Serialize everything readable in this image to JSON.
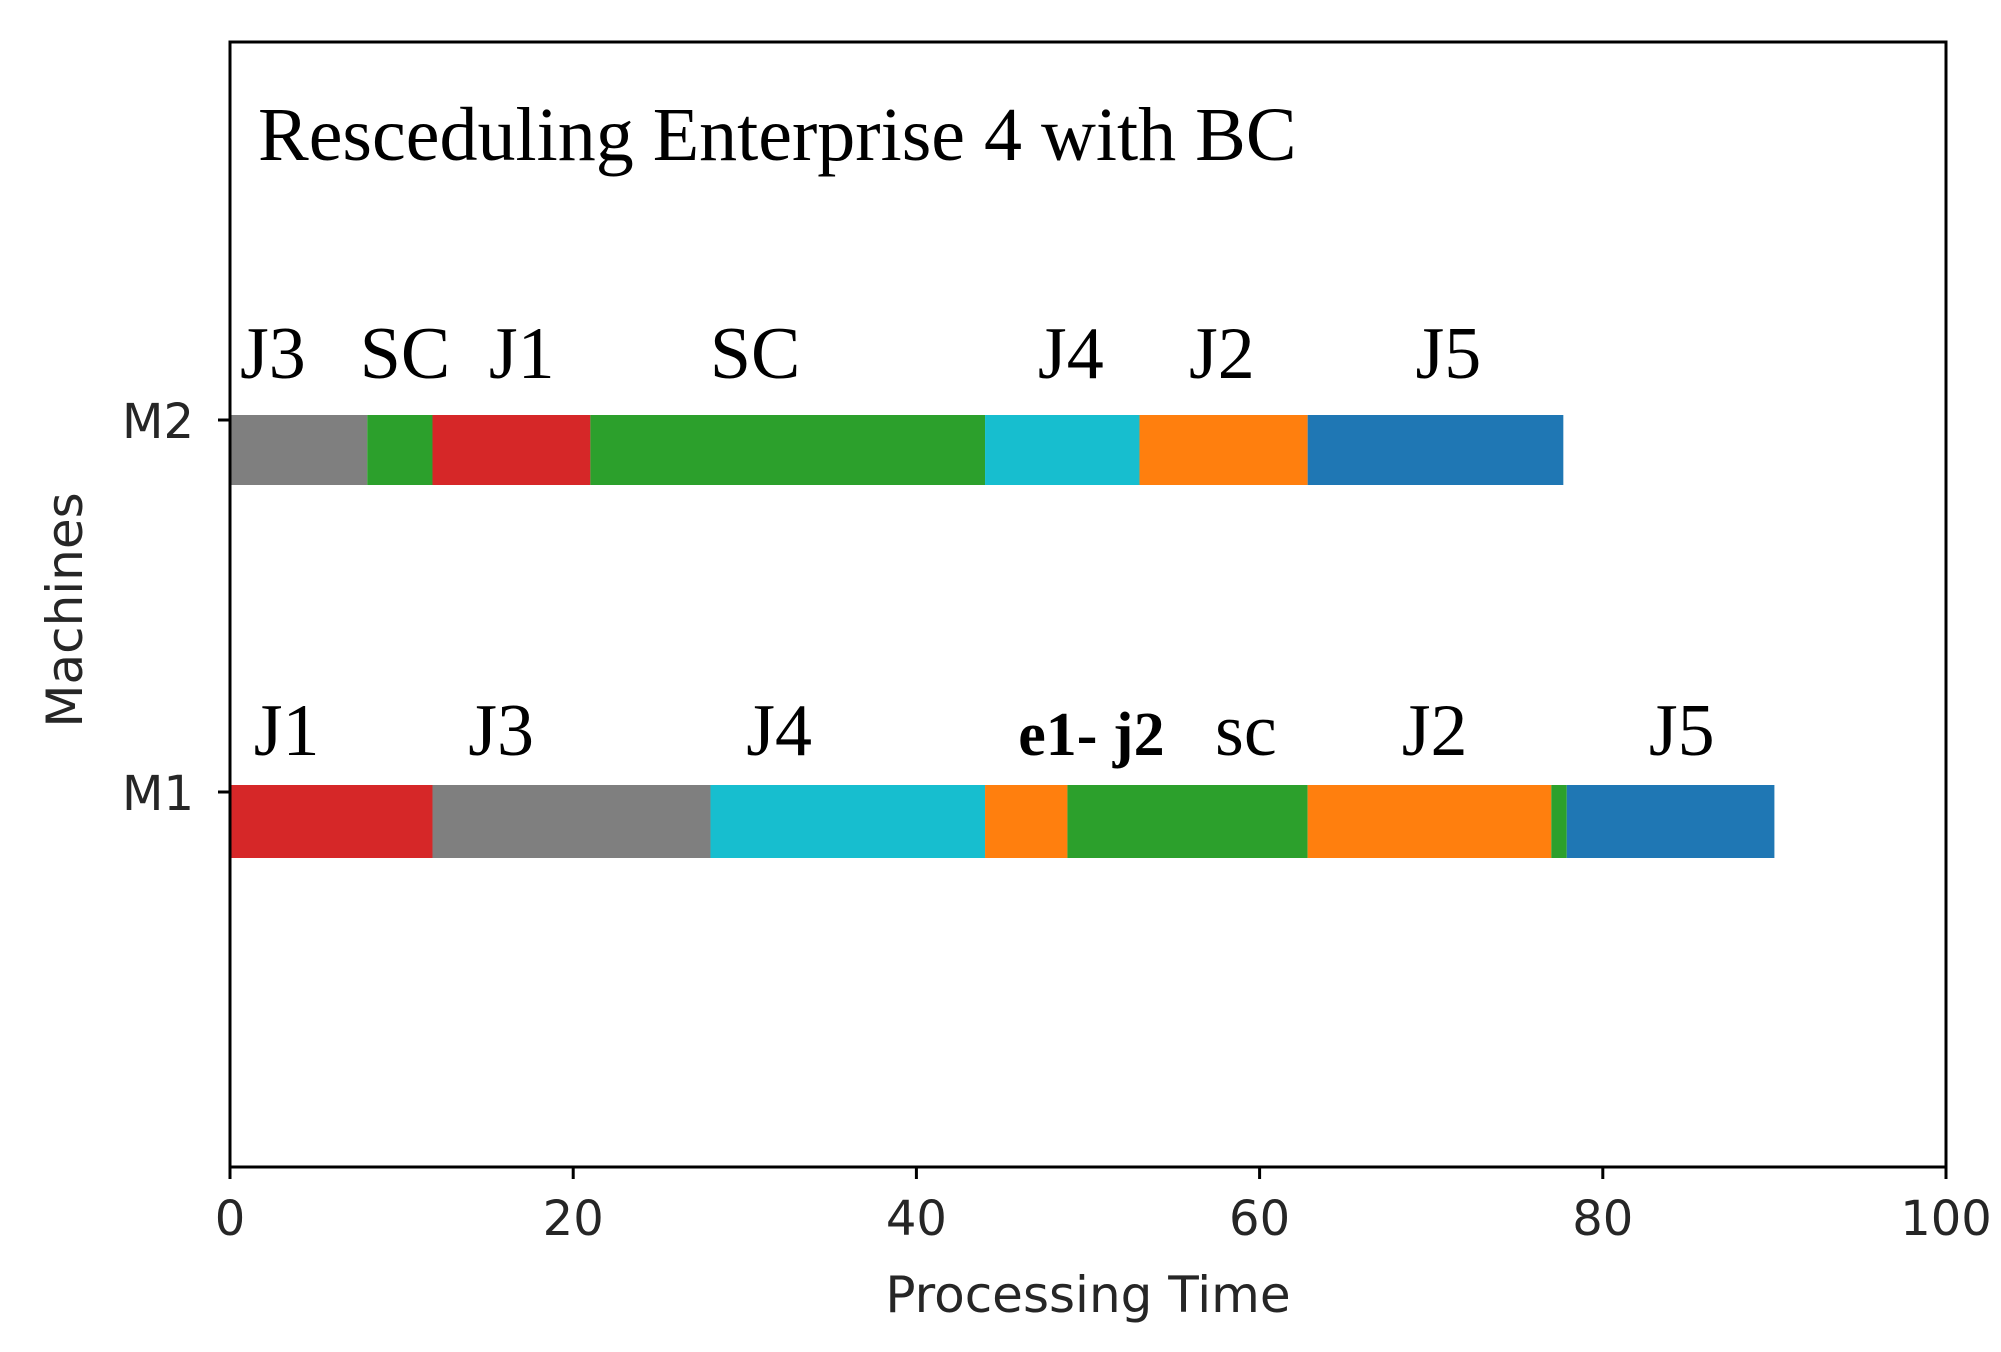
{
  "chart_data": {
    "type": "gantt",
    "title": "Resceduling Enterprise 4 with BC",
    "xlabel": "Processing Time",
    "ylabel": "Machines",
    "xlim": [
      0,
      100
    ],
    "xticks": [
      "0",
      "20",
      "40",
      "60",
      "80",
      "100"
    ],
    "machines": [
      {
        "name": "M2",
        "segments": [
          {
            "start": 0,
            "end": 8,
            "color": "#7f7f7f"
          },
          {
            "start": 8,
            "end": 11.8,
            "color": "#2ca02c"
          },
          {
            "start": 11.8,
            "end": 21,
            "color": "#d62728"
          },
          {
            "start": 21,
            "end": 44,
            "color": "#2ca02c"
          },
          {
            "start": 44,
            "end": 53,
            "color": "#17becf"
          },
          {
            "start": 53,
            "end": 62.8,
            "color": "#ff7f0e"
          },
          {
            "start": 62.8,
            "end": 77.7,
            "color": "#1f77b4"
          }
        ],
        "labels": [
          {
            "text": "J3",
            "x": 2.5,
            "color": "#000000",
            "bold": false
          },
          {
            "text": "SC",
            "x": 10.2,
            "color": "#000000",
            "bold": false
          },
          {
            "text": "J1",
            "x": 17,
            "color": "#000000",
            "bold": false
          },
          {
            "text": "SC",
            "x": 30.6,
            "color": "#000000",
            "bold": false
          },
          {
            "text": "J4",
            "x": 49,
            "color": "#000000",
            "bold": false
          },
          {
            "text": "J2",
            "x": 57.8,
            "color": "#000000",
            "bold": false
          },
          {
            "text": "J5",
            "x": 71,
            "color": "#000000",
            "bold": false
          }
        ]
      },
      {
        "name": "M1",
        "segments": [
          {
            "start": 0,
            "end": 11.8,
            "color": "#d62728"
          },
          {
            "start": 11.8,
            "end": 28,
            "color": "#7f7f7f"
          },
          {
            "start": 28,
            "end": 44,
            "color": "#17becf"
          },
          {
            "start": 44,
            "end": 48.8,
            "color": "#ff7f0e"
          },
          {
            "start": 48.8,
            "end": 62.8,
            "color": "#2ca02c"
          },
          {
            "start": 62.8,
            "end": 77,
            "color": "#ff7f0e"
          },
          {
            "start": 77,
            "end": 77.9,
            "color": "#2ca02c"
          },
          {
            "start": 77.9,
            "end": 90,
            "color": "#1f77b4"
          }
        ],
        "labels": [
          {
            "text": "J1",
            "x": 3.3,
            "color": "#000000",
            "bold": false
          },
          {
            "text": "J3",
            "x": 15.8,
            "color": "#000000",
            "bold": false
          },
          {
            "text": "J4",
            "x": 32,
            "color": "#000000",
            "bold": false
          },
          {
            "text": "e1- j2",
            "x": 50.2,
            "color": "#f57c22",
            "bold": true
          },
          {
            "text": "sc",
            "x": 59.2,
            "color": "#000000",
            "bold": false
          },
          {
            "text": "J2",
            "x": 70.2,
            "color": "#000000",
            "bold": false
          },
          {
            "text": "J5",
            "x": 84.6,
            "color": "#000000",
            "bold": false
          }
        ]
      }
    ]
  }
}
